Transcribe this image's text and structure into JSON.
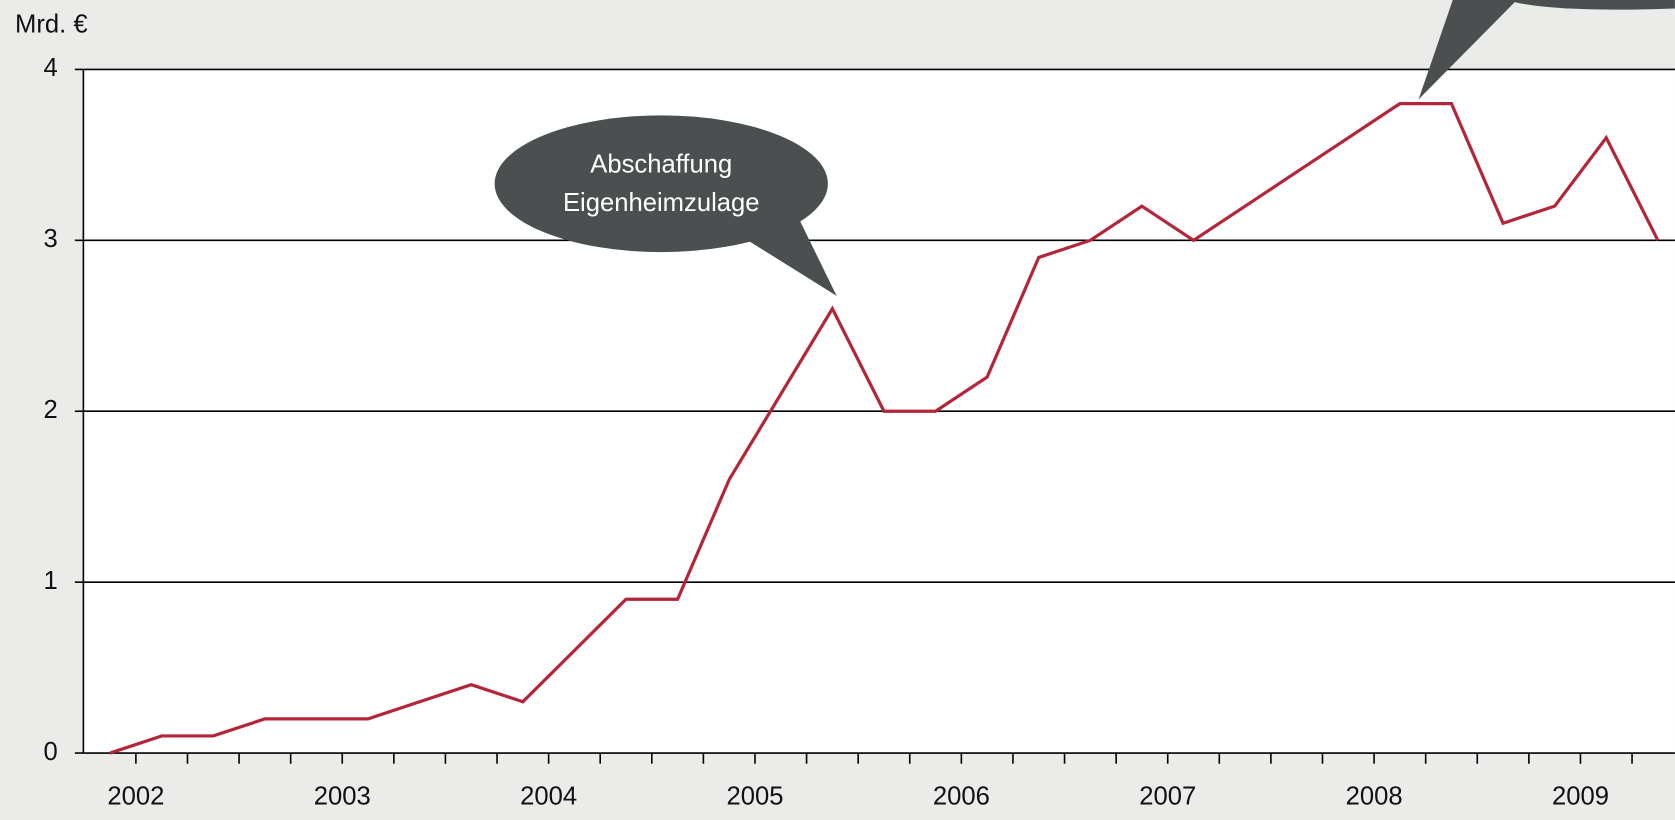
{
  "chart_data": {
    "type": "line",
    "y_label": "Mrd. €",
    "categories": [
      "2002",
      null,
      null,
      null,
      "2003",
      null,
      null,
      null,
      "2004",
      null,
      null,
      null,
      "2005",
      null,
      null,
      null,
      "2006",
      null,
      null,
      null,
      "2007",
      null,
      null,
      null,
      "2008",
      null,
      null,
      null,
      "2009",
      null,
      null
    ],
    "series": [
      {
        "color": "#b5253a",
        "values": [
          0,
          0.1,
          0.1,
          0.2,
          0.2,
          0.2,
          0.3,
          0.4,
          0.3,
          0.6,
          0.9,
          0.9,
          1.6,
          2.1,
          2.6,
          2.0,
          2.0,
          2.2,
          2.9,
          3.0,
          3.2,
          3.0,
          3.2,
          3.4,
          3.6,
          3.8,
          3.8,
          3.1,
          3.2,
          3.6,
          3.0
        ]
      }
    ],
    "ylim": [
      0,
      4
    ],
    "yticks": [
      0,
      1,
      2,
      3,
      4
    ],
    "grid": true,
    "annotations": [
      {
        "lines": [
          "Abschaffung",
          "Eigenheimzulage"
        ],
        "index": 14
      }
    ]
  }
}
